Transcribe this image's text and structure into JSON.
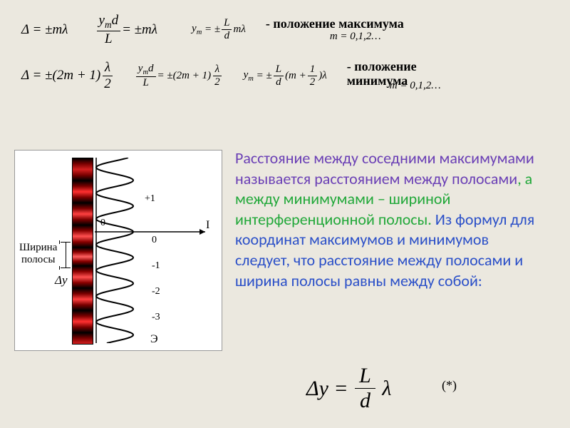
{
  "formulas": {
    "delta_max": "Δ = ±mλ",
    "ymd_max_lhs_num": "y_m d",
    "ymd_max_lhs_den": "L",
    "ymd_max_rhs": "= ±mλ",
    "ym_max_lhs": "y_m = ±",
    "ym_max_frac_num": "L",
    "ym_max_frac_den": "d",
    "ym_max_tail": "mλ",
    "max_label": "- положение максимума",
    "max_m": "m = 0,1,2…",
    "delta_min_lhs": "Δ = ±(2m + 1)",
    "half_num": "λ",
    "half_den": "2",
    "ymd_min_lhs_num": "y_m d",
    "ymd_min_lhs_den": "L",
    "ymd_min_rhs": "= ±(2m + 1)",
    "ym_min_lhs": "y_m = ±",
    "ym_min_frac_num": "L",
    "ym_min_frac_den": "d",
    "ym_min_mid": "(m +",
    "ym_min_half_num": "1",
    "ym_min_half_den": "2",
    "ym_min_tail": ")λ",
    "min_label1": "- положение",
    "min_label2": "минимума",
    "min_m": "m = 0,1,2…"
  },
  "paragraph": {
    "s1a": "Расстояние между соседними максимумами называется ",
    "s1b": "расстоянием между полосами",
    "comma": ", ",
    "s2": "а между минимумами – шириной интерференционной полосы.",
    "s3": "  Из формул для координат максимумов и минимумов",
    "s4": "следует, что расстояние между полосами и ширина  полосы равны между собой:",
    "colors": {
      "purple": "#6a3fb5",
      "green": "#22a83a",
      "blue": "#2a4fc8"
    }
  },
  "result": {
    "lhs": "Δy =",
    "num": "L",
    "den": "d",
    "tail": "λ",
    "marker": "(*)"
  },
  "diagram": {
    "width_label": "Ширина",
    "width_label2": "полосы",
    "dy": "Δy",
    "order_labels": [
      "+1",
      "0",
      "-1",
      "-2",
      "-3"
    ],
    "axis_I": "I",
    "axis_zero": "0",
    "e_label": "Э",
    "wave": {
      "amplitude": 52,
      "periods": 7.2,
      "stroke": "#000000",
      "stroke_width": 2
    },
    "pattern_colors": {
      "dark": "#000000",
      "red": "#ff4040"
    }
  }
}
